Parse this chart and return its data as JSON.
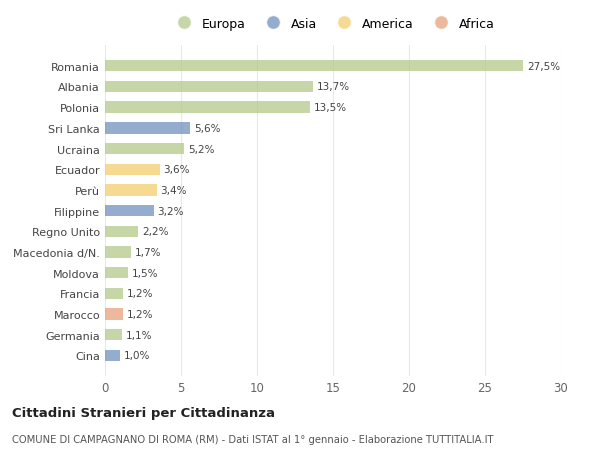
{
  "categories": [
    "Cina",
    "Germania",
    "Marocco",
    "Francia",
    "Moldova",
    "Macedonia d/N.",
    "Regno Unito",
    "Filippine",
    "Perù",
    "Ecuador",
    "Ucraina",
    "Sri Lanka",
    "Polonia",
    "Albania",
    "Romania"
  ],
  "values": [
    1.0,
    1.1,
    1.2,
    1.2,
    1.5,
    1.7,
    2.2,
    3.2,
    3.4,
    3.6,
    5.2,
    5.6,
    13.5,
    13.7,
    27.5
  ],
  "continents": [
    "Asia",
    "Europa",
    "Africa",
    "Europa",
    "Europa",
    "Europa",
    "Europa",
    "Asia",
    "America",
    "America",
    "Europa",
    "Asia",
    "Europa",
    "Europa",
    "Europa"
  ],
  "labels": [
    "1,0%",
    "1,1%",
    "1,2%",
    "1,2%",
    "1,5%",
    "1,7%",
    "2,2%",
    "3,2%",
    "3,4%",
    "3,6%",
    "5,2%",
    "5,6%",
    "13,5%",
    "13,7%",
    "27,5%"
  ],
  "colors": {
    "Europa": "#b5c98a",
    "Asia": "#7090be",
    "America": "#f5ce6e",
    "Africa": "#e8a07a"
  },
  "title": "Cittadini Stranieri per Cittadinanza",
  "subtitle": "COMUNE DI CAMPAGNANO DI ROMA (RM) - Dati ISTAT al 1° gennaio - Elaborazione TUTTITALIA.IT",
  "xlim": [
    0,
    30
  ],
  "xticks": [
    0,
    5,
    10,
    15,
    20,
    25,
    30
  ],
  "background_color": "#ffffff",
  "grid_color": "#e8e8e8",
  "bar_alpha": 0.75,
  "legend_order": [
    "Europa",
    "Asia",
    "America",
    "Africa"
  ]
}
